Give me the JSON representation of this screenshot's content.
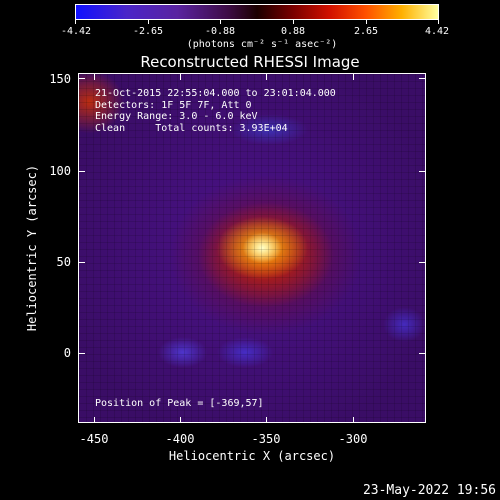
{
  "colorbar": {
    "labels": [
      "-4.42",
      "-2.65",
      "-0.88",
      "0.88",
      "2.65",
      "4.42"
    ],
    "units": "(photons cm⁻² s⁻¹ asec⁻²)",
    "colors": [
      "#1010ff",
      "#5a23a0",
      "#1b0000",
      "#d01000",
      "#ffb000",
      "#ffffa0"
    ]
  },
  "plot": {
    "title": "Reconstructed RHESSI Image",
    "info_lines": [
      "21-Oct-2015 22:55:04.000 to 23:01:04.000",
      "Detectors: 1F 5F 7F, Att 0",
      "Energy Range: 3.0 - 6.0 keV",
      "Clean     Total counts: 3.93E+04"
    ],
    "peak_label": "Position of Peak = [-369,57]",
    "x_axis": {
      "title": "Heliocentric X (arcsec)",
      "ticks": [
        "-450",
        "-400",
        "-350",
        "-300"
      ]
    },
    "y_axis": {
      "title": "Heliocentric Y (arcsec)",
      "ticks": [
        "150",
        "100",
        "50",
        "0"
      ]
    }
  },
  "footer": {
    "date": "23-May-2022 19:56"
  }
}
